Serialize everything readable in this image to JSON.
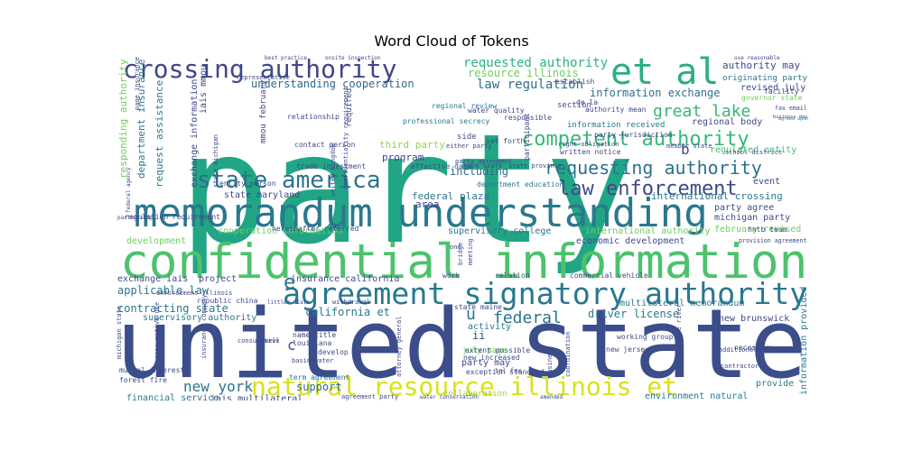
{
  "title": "Word Cloud of Tokens",
  "chart_data": {
    "type": "wordcloud",
    "title": "Word Cloud of Tokens",
    "words": [
      {
        "text": "party",
        "size": 168,
        "color": "#21a685"
      },
      {
        "text": "united state",
        "size": 120,
        "color": "#3b4d8a"
      },
      {
        "text": "confidential information",
        "size": 54,
        "color": "#4cc26c"
      },
      {
        "text": "memorandum understanding",
        "size": 44,
        "color": "#2a788e"
      },
      {
        "text": "agreement signatory authority",
        "size": 36,
        "color": "#2a788e"
      },
      {
        "text": "natural resource illinois et",
        "size": 28,
        "color": "#d8e219"
      },
      {
        "text": "crossing authority",
        "size": 28,
        "color": "#3f4788"
      },
      {
        "text": "et al",
        "size": 40,
        "color": "#29af7f"
      },
      {
        "text": "state america",
        "size": 26,
        "color": "#2c728e"
      },
      {
        "text": "competent authority",
        "size": 22,
        "color": "#35b779"
      },
      {
        "text": "requesting authority",
        "size": 20,
        "color": "#2c728e"
      },
      {
        "text": "law enforcement",
        "size": 22,
        "color": "#3e4989"
      },
      {
        "text": "great lake",
        "size": 18,
        "color": "#35b779"
      },
      {
        "text": "requested authority",
        "size": 14,
        "color": "#2db27d"
      },
      {
        "text": "resource illinois",
        "size": 12,
        "color": "#6ece58"
      },
      {
        "text": "law regulation",
        "size": 14,
        "color": "#2e6e8e"
      },
      {
        "text": "understanding cooperation",
        "size": 12,
        "color": "#31688e"
      },
      {
        "text": "information exchange",
        "size": 12,
        "color": "#2c728e"
      },
      {
        "text": "authority may",
        "size": 11,
        "color": "#3e4989"
      },
      {
        "text": "originating party",
        "size": 10,
        "color": "#2a788e"
      },
      {
        "text": "revised july",
        "size": 10,
        "color": "#3e4989"
      },
      {
        "text": "regional body",
        "size": 10,
        "color": "#3e4989"
      },
      {
        "text": "regulated entity",
        "size": 10,
        "color": "#44bf70"
      },
      {
        "text": "including",
        "size": 12,
        "color": "#31688e"
      },
      {
        "text": "federal plaza",
        "size": 11,
        "color": "#2a788e"
      },
      {
        "text": "state maryland",
        "size": 10,
        "color": "#3e4989"
      },
      {
        "text": "international crossing",
        "size": 11,
        "color": "#2a788e"
      },
      {
        "text": "party agree",
        "size": 10,
        "color": "#3e4989"
      },
      {
        "text": "michigan party",
        "size": 10,
        "color": "#3e4989"
      },
      {
        "text": "cooperation information",
        "size": 10,
        "color": "#6ece58"
      },
      {
        "text": "supervisory college",
        "size": 10,
        "color": "#2a788e"
      },
      {
        "text": "international authority",
        "size": 10,
        "color": "#6ece58"
      },
      {
        "text": "february revised",
        "size": 10,
        "color": "#6ece58"
      },
      {
        "text": "economic development",
        "size": 10,
        "color": "#3e4989"
      },
      {
        "text": "development",
        "size": 10,
        "color": "#6ece58"
      },
      {
        "text": "exchange iais",
        "size": 10,
        "color": "#3e4989"
      },
      {
        "text": "project",
        "size": 10,
        "color": "#3e4989"
      },
      {
        "text": "applicable law",
        "size": 12,
        "color": "#2c728e"
      },
      {
        "text": "insurance california",
        "size": 10,
        "color": "#3e4989"
      },
      {
        "text": "contracting state",
        "size": 12,
        "color": "#2a788e"
      },
      {
        "text": "california et",
        "size": 12,
        "color": "#2a788e"
      },
      {
        "text": "supervisory authority",
        "size": 10,
        "color": "#2a788e"
      },
      {
        "text": "federal",
        "size": 18,
        "color": "#2c728e"
      },
      {
        "text": "driver license",
        "size": 12,
        "color": "#2a788e"
      },
      {
        "text": "multilateral memorandum",
        "size": 10,
        "color": "#2a788e"
      },
      {
        "text": "new brunswick",
        "size": 10,
        "color": "#3e4989"
      },
      {
        "text": "new york",
        "size": 16,
        "color": "#2c728e"
      },
      {
        "text": "support",
        "size": 12,
        "color": "#2c728e"
      },
      {
        "text": "iais multilateral",
        "size": 10,
        "color": "#3e4989"
      },
      {
        "text": "financial service",
        "size": 10,
        "color": "#2a788e"
      },
      {
        "text": "environment natural",
        "size": 10,
        "color": "#2a788e"
      },
      {
        "text": "responding authority",
        "size": 11,
        "color": "#6ece58"
      },
      {
        "text": "department insurance",
        "size": 11,
        "color": "#2a788e"
      },
      {
        "text": "request assistance",
        "size": 11,
        "color": "#2a788e"
      },
      {
        "text": "exchange information",
        "size": 10,
        "color": "#3e4989"
      },
      {
        "text": "mmou february",
        "size": 9,
        "color": "#3e4989"
      },
      {
        "text": "iais mmou",
        "size": 10,
        "color": "#3e4989"
      },
      {
        "text": "third party",
        "size": 11,
        "color": "#8fd744"
      },
      {
        "text": "program",
        "size": 11,
        "color": "#3e4989"
      },
      {
        "text": "area",
        "size": 11,
        "color": "#3e4989"
      },
      {
        "text": "required",
        "size": 9,
        "color": "#3e4989"
      },
      {
        "text": "information provided",
        "size": 10,
        "color": "#2a788e"
      },
      {
        "text": "provide",
        "size": 10,
        "color": "#2a788e"
      },
      {
        "text": "event",
        "size": 10,
        "color": "#3e4989"
      },
      {
        "text": "activity",
        "size": 10,
        "color": "#2a788e"
      },
      {
        "text": "party may",
        "size": 10,
        "color": "#3e4989"
      },
      {
        "text": "july page",
        "size": 9,
        "color": "#6ece58"
      },
      {
        "text": "collaboration",
        "size": 9,
        "color": "#8fd744"
      },
      {
        "text": "b",
        "size": 16,
        "color": "#3e4989"
      },
      {
        "text": "e",
        "size": 22,
        "color": "#2c728e"
      },
      {
        "text": "c",
        "size": 16,
        "color": "#3e4989"
      },
      {
        "text": "u",
        "size": 18,
        "color": "#2c728e"
      },
      {
        "text": "ii",
        "size": 12,
        "color": "#3e4989"
      },
      {
        "text": "professional secrecy",
        "size": 8,
        "color": "#2a788e"
      },
      {
        "text": "regional review",
        "size": 8,
        "color": "#2a788e"
      },
      {
        "text": "responsible",
        "size": 8,
        "color": "#3e4989"
      },
      {
        "text": "section",
        "size": 9,
        "color": "#3e4989"
      },
      {
        "text": "set forth",
        "size": 8,
        "color": "#3e4989"
      },
      {
        "text": "written notice",
        "size": 8,
        "color": "#3e4989"
      },
      {
        "text": "effective date",
        "size": 8,
        "color": "#3e4989"
      },
      {
        "text": "fax email",
        "size": 8,
        "color": "#3e4989"
      },
      {
        "text": "agreed upon",
        "size": 8,
        "color": "#2a788e"
      },
      {
        "text": "governor state",
        "size": 8,
        "color": "#6ece58"
      },
      {
        "text": "working group",
        "size": 8,
        "color": "#3e4989"
      },
      {
        "text": "new jersey",
        "size": 8,
        "color": "#3e4989"
      },
      {
        "text": "necessary",
        "size": 8,
        "color": "#3e4989"
      },
      {
        "text": "relationship",
        "size": 8,
        "color": "#3e4989"
      },
      {
        "text": "contact person",
        "size": 8,
        "color": "#3e4989"
      },
      {
        "text": "trade investment",
        "size": 8,
        "color": "#3e4989"
      },
      {
        "text": "entity person",
        "size": 8,
        "color": "#3e4989"
      },
      {
        "text": "department education",
        "size": 8,
        "color": "#2a788e"
      },
      {
        "text": "regulation requirement",
        "size": 8,
        "color": "#3e4989"
      },
      {
        "text": "hereinafter referred",
        "size": 8,
        "color": "#3e4989"
      },
      {
        "text": "republic china",
        "size": 8,
        "color": "#3e4989"
      },
      {
        "text": "mutual interest",
        "size": 8,
        "color": "#3e4989"
      },
      {
        "text": "forest fire",
        "size": 8,
        "color": "#3e4989"
      },
      {
        "text": "term agreement",
        "size": 8,
        "color": "#2a788e"
      },
      {
        "text": "extent possible",
        "size": 8,
        "color": "#3e4989"
      },
      {
        "text": "exception standard",
        "size": 8,
        "color": "#3e4989"
      },
      {
        "text": "name title",
        "size": 8,
        "color": "#3e4989"
      },
      {
        "text": "louisiana",
        "size": 8,
        "color": "#3e4989"
      },
      {
        "text": "develop",
        "size": 8,
        "color": "#3e4989"
      },
      {
        "text": "water quality",
        "size": 8,
        "color": "#3e4989"
      },
      {
        "text": "state maine",
        "size": 8,
        "color": "#3e4989"
      },
      {
        "text": "new increased",
        "size": 8,
        "color": "#3e4989"
      },
      {
        "text": "provision agreement",
        "size": 8,
        "color": "#3e4989"
      },
      {
        "text": "work",
        "size": 8,
        "color": "#3e4989"
      },
      {
        "text": "relation",
        "size": 8,
        "color": "#3e4989"
      },
      {
        "text": "commercial vehicle",
        "size": 8,
        "color": "#3e4989"
      },
      {
        "text": "hntb team",
        "size": 8,
        "color": "#3e4989"
      },
      {
        "text": "facility",
        "size": 8,
        "color": "#3e4989"
      },
      {
        "text": "business day",
        "size": 7,
        "color": "#3e4989"
      },
      {
        "text": "information received",
        "size": 9,
        "color": "#2a788e"
      },
      {
        "text": "authority mean",
        "size": 8,
        "color": "#3e4989"
      },
      {
        "text": "party jurisdiction",
        "size": 8,
        "color": "#3e4989"
      },
      {
        "text": "right obligation",
        "size": 7,
        "color": "#3e4989"
      },
      {
        "text": "member state",
        "size": 7,
        "color": "#3e4989"
      },
      {
        "text": "school district",
        "size": 7,
        "color": "#3e4989"
      },
      {
        "text": "enforcement illinois",
        "size": 7,
        "color": "#3e4989"
      },
      {
        "text": "basin water",
        "size": 7,
        "color": "#3e4989"
      },
      {
        "text": "tal fax",
        "size": 7,
        "color": "#3e4989"
      },
      {
        "text": "either party",
        "size": 7,
        "color": "#3e4989"
      },
      {
        "text": "party agreement",
        "size": 7,
        "color": "#3e4989"
      },
      {
        "text": "york state",
        "size": 7,
        "color": "#3e4989"
      },
      {
        "text": "state province",
        "size": 7,
        "color": "#3e4989"
      },
      {
        "text": "best practice",
        "size": 6,
        "color": "#3e4989"
      },
      {
        "text": "onsite inspection",
        "size": 6,
        "color": "#3e4989"
      },
      {
        "text": "use reasonable",
        "size": 6,
        "color": "#3e4989"
      },
      {
        "text": "establish",
        "size": 8,
        "color": "#3e4989"
      },
      {
        "text": "de la",
        "size": 8,
        "color": "#3e4989"
      },
      {
        "text": "representative",
        "size": 7,
        "color": "#3e4989"
      },
      {
        "text": "side",
        "size": 9,
        "color": "#3e4989"
      },
      {
        "text": "one",
        "size": 7,
        "color": "#3e4989"
      },
      {
        "text": "bridge",
        "size": 7,
        "color": "#3e4989"
      },
      {
        "text": "meeting",
        "size": 7,
        "color": "#3e4989"
      },
      {
        "text": "participant",
        "size": 8,
        "color": "#3e4989"
      },
      {
        "text": "attorney general",
        "size": 7,
        "color": "#3e4989"
      },
      {
        "text": "business",
        "size": 7,
        "color": "#3e4989"
      },
      {
        "text": "coordination",
        "size": 7,
        "color": "#3e4989"
      },
      {
        "text": "lawrence river",
        "size": 7,
        "color": "#3e4989"
      },
      {
        "text": "additional",
        "size": 7,
        "color": "#3e4989"
      },
      {
        "text": "contractor",
        "size": 7,
        "color": "#3e4989"
      },
      {
        "text": "based",
        "size": 6,
        "color": "#3e4989"
      },
      {
        "text": "partnership",
        "size": 6,
        "color": "#3e4989"
      },
      {
        "text": "federal agency",
        "size": 6,
        "color": "#3e4989"
      },
      {
        "text": "page insurance",
        "size": 7,
        "color": "#3e4989"
      },
      {
        "text": "michigan state",
        "size": 7,
        "color": "#3e4989"
      },
      {
        "text": "consumptive use",
        "size": 7,
        "color": "#3e4989"
      },
      {
        "text": "insurance company",
        "size": 7,
        "color": "#3e4989"
      },
      {
        "text": "state michigan",
        "size": 7,
        "color": "#3e4989"
      },
      {
        "text": "united kingdom",
        "size": 7,
        "color": "#3e4989"
      },
      {
        "text": "confidentiality requirement",
        "size": 7,
        "color": "#3e4989"
      },
      {
        "text": "agreement party",
        "size": 7,
        "color": "#3e4989"
      },
      {
        "text": "water conservation",
        "size": 6,
        "color": "#3e4989"
      },
      {
        "text": "amended",
        "size": 6,
        "color": "#3e4989"
      },
      {
        "text": "littler state",
        "size": 6,
        "color": "#3e4989"
      },
      {
        "text": "withdrawal",
        "size": 7,
        "color": "#3e4989"
      },
      {
        "text": "consumptive",
        "size": 7,
        "color": "#3e4989"
      },
      {
        "text": "well",
        "size": 7,
        "color": "#3e4989"
      },
      {
        "text": "collection",
        "size": 6,
        "color": "#3e4989"
      }
    ]
  }
}
